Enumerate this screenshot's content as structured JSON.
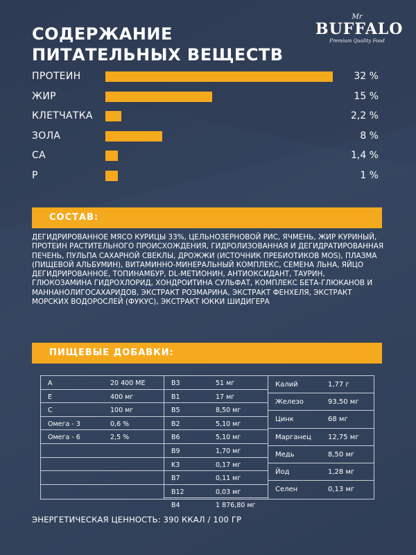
{
  "title_lines": [
    "СОДЕРЖАНИЕ",
    "ПИТАТЕЛЬНЫХ ВЕЩЕСТВ"
  ],
  "logo": {
    "mr": "Mr",
    "brand": "BUFFALO",
    "tagline": "Premium Quality Food"
  },
  "colors": {
    "accent": "#f5a91d",
    "background": "#33425a"
  },
  "nutrients": [
    {
      "label": "ПРОТЕИН",
      "value": "32 %",
      "percent": 32
    },
    {
      "label": "ЖИР",
      "value": "15 %",
      "percent": 15
    },
    {
      "label": "КЛЕТЧАТКА",
      "value": "2,2 %",
      "percent": 2.2
    },
    {
      "label": "ЗОЛА",
      "value": "8 %",
      "percent": 8
    },
    {
      "label": "CA",
      "value": "1,4 %",
      "percent": 1.4
    },
    {
      "label": "P",
      "value": "1 %",
      "percent": 1
    }
  ],
  "composition": {
    "heading": "СОСТАВ:",
    "text": "ДЕГИДРИРОВАННОЕ МЯСО КУРИЦЫ 33%, ЦЕЛЬНОЗЕРНОВОЙ РИС, ЯЧМЕНЬ, ЖИР КУРИНЫЙ, ПРОТЕИН РАСТИТЕЛЬНОГО ПРОИСХОЖДЕНИЯ, ГИДРОЛИЗОВАННАЯ И ДЕГИДРАТИРОВАННАЯ ПЕЧЕНЬ, ПУЛЬПА САХАРНОЙ СВЕКЛЫ, ДРОЖЖИ (ИСТОЧНИК ПРЕБИОТИКОВ MOS), ПЛАЗМА (ПИЩЕВОЙ АЛЬБУМИН), ВИТАМИННО-МИНЕРАЛЬНЫЙ КОМПЛЕКС, СЕМЕНА ЛЬНА, ЯЙЦО ДЕГИДРИРОВАННОЕ, ТОПИНАМБУР, DL-МЕТИОНИН, АНТИОКСИДАНТ, ТАУРИН, ГЛЮКОЗАМИНА ГИДРОХЛОРИД, ХОНДРОИТИНА СУЛЬФАТ, КОМПЛЕКС БЕТА-ГЛЮКАНОВ И МАННАНОЛИГОСАХАРИДОВ, ЭКСТРАКТ РОЗМАРИНА, ЭКСТРАКТ ФЕНХЕЛЯ, ЭКСТРАКТ МОРСКИХ ВОДОРОСЛЕЙ (ФУКУС), ЭКСТРАКТ ЮККИ ШИДИГЕРА"
  },
  "additives": {
    "heading": "ПИЩЕВЫЕ ДОБАВКИ:",
    "col_a": [
      {
        "k": "A",
        "v": "20 400 МЕ"
      },
      {
        "k": "E",
        "v": "400 мг"
      },
      {
        "k": "C",
        "v": "100 мг"
      },
      {
        "k": "Омега - 3",
        "v": "0,6 %"
      },
      {
        "k": "Омега - 6",
        "v": "2,5 %"
      },
      {
        "k": "",
        "v": ""
      },
      {
        "k": "",
        "v": ""
      },
      {
        "k": "",
        "v": ""
      },
      {
        "k": "",
        "v": ""
      }
    ],
    "col_b": [
      {
        "k": "B3",
        "v": "51 мг"
      },
      {
        "k": "B1",
        "v": "17 мг"
      },
      {
        "k": "B5",
        "v": "8,50 мг"
      },
      {
        "k": "B2",
        "v": "5,10 мг"
      },
      {
        "k": "B6",
        "v": "5,10 мг"
      },
      {
        "k": "B9",
        "v": "1,70 мг"
      },
      {
        "k": "K3",
        "v": "0,17 мг"
      },
      {
        "k": "B7",
        "v": "0,11 мг"
      },
      {
        "k": "B12",
        "v": "0,03 мг"
      },
      {
        "k": "B4",
        "v": "1 876,80 мг"
      }
    ],
    "col_c": [
      {
        "k": "Калий",
        "v": "1,77 г"
      },
      {
        "k": "Железо",
        "v": "93,50 мг"
      },
      {
        "k": "Цинк",
        "v": "68 мг"
      },
      {
        "k": "Марганец",
        "v": "12,75 мг"
      },
      {
        "k": "Медь",
        "v": "8,50 мг"
      },
      {
        "k": "Йод",
        "v": "1,28 мг"
      },
      {
        "k": "Селен",
        "v": "0,13 мг"
      }
    ]
  },
  "energy": "ЭНЕРГЕТИЧЕСКАЯ ЦЕННОСТЬ: 390 ККАЛ / 100 ГР"
}
